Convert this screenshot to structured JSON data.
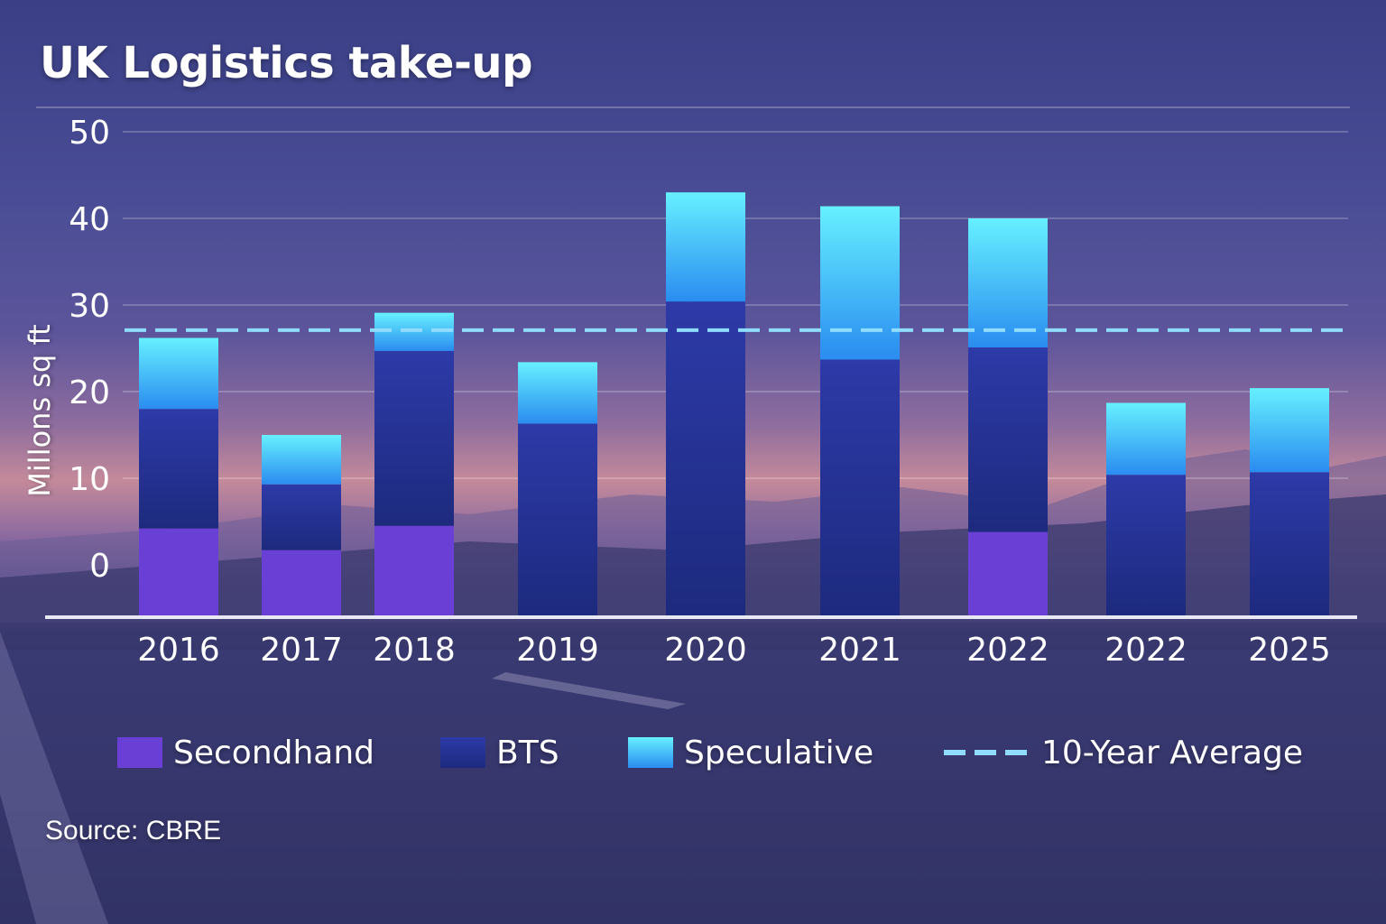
{
  "title": "UK Logistics take-up",
  "source": "Source: CBRE",
  "colors": {
    "secondhand": "#6a3fd6",
    "bts_top": "#2d3aa8",
    "bts_bottom": "#1d2a7e",
    "speculative_top": "#66f0ff",
    "speculative_bottom": "#2a8cf0",
    "average_line": "#8fdcff"
  },
  "chart_data": {
    "type": "bar",
    "stacked": true,
    "title": "UK Logistics take-up",
    "ylabel": "Millons sq ft",
    "xlabel": "",
    "ylim": [
      0,
      50
    ],
    "yticks": [
      0,
      10,
      20,
      30,
      40,
      50
    ],
    "categories": [
      "2016",
      "2017",
      "2018",
      "2019",
      "2020",
      "2021",
      "2022",
      "2022",
      "2025"
    ],
    "series": [
      {
        "name": "Secondhand",
        "values": [
          4.2,
          1.7,
          4.5,
          0,
          0,
          0,
          3.8,
          0,
          0
        ]
      },
      {
        "name": "BTS",
        "values": [
          13.8,
          7.6,
          20.2,
          16.3,
          30.4,
          23.7,
          21.3,
          10.4,
          10.7
        ]
      },
      {
        "name": "Speculative",
        "values": [
          8.2,
          5.7,
          4.4,
          7.1,
          12.6,
          17.7,
          14.9,
          8.3,
          9.7
        ]
      }
    ],
    "reference_lines": [
      {
        "name": "10-Year Average",
        "value": 27.1,
        "style": "dashed"
      }
    ],
    "legend": [
      "Secondhand",
      "BTS",
      "Speculative",
      "10-Year Average"
    ],
    "legend_placement": "bottom",
    "grid": true
  }
}
